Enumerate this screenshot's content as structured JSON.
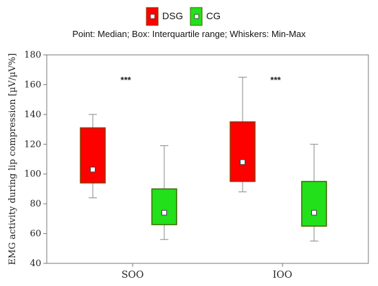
{
  "chart_data": {
    "type": "boxplot",
    "subtitle": "Point: Median; Box: Interquartile range; Whiskers: Min-Max",
    "ylabel": "EMG activity during lip compression [µV/µV%]",
    "xlabel": "",
    "ylim": [
      40,
      180
    ],
    "yticks": [
      40,
      60,
      80,
      100,
      120,
      140,
      160,
      180
    ],
    "categories": [
      "SOO",
      "IOO"
    ],
    "legend_position": "top-center",
    "grid": false,
    "series": [
      {
        "name": "DSG",
        "color": "#ff0000",
        "edge_color": "#8b3a00",
        "boxes": [
          {
            "category": "SOO",
            "min": 84,
            "q1": 94,
            "median": 103,
            "q3": 131,
            "max": 140
          },
          {
            "category": "IOO",
            "min": 88,
            "q1": 95,
            "median": 108,
            "q3": 135,
            "max": 165
          }
        ]
      },
      {
        "name": "CG",
        "color": "#22e01a",
        "edge_color": "#3a6a00",
        "boxes": [
          {
            "category": "SOO",
            "min": 56,
            "q1": 66,
            "median": 74,
            "q3": 90,
            "max": 119
          },
          {
            "category": "IOO",
            "min": 55,
            "q1": 65,
            "median": 74,
            "q3": 95,
            "max": 120
          }
        ]
      }
    ],
    "annotations": [
      {
        "text": "***",
        "category": "SOO",
        "y": 163
      },
      {
        "text": "***",
        "category": "IOO",
        "y": 163
      }
    ]
  }
}
